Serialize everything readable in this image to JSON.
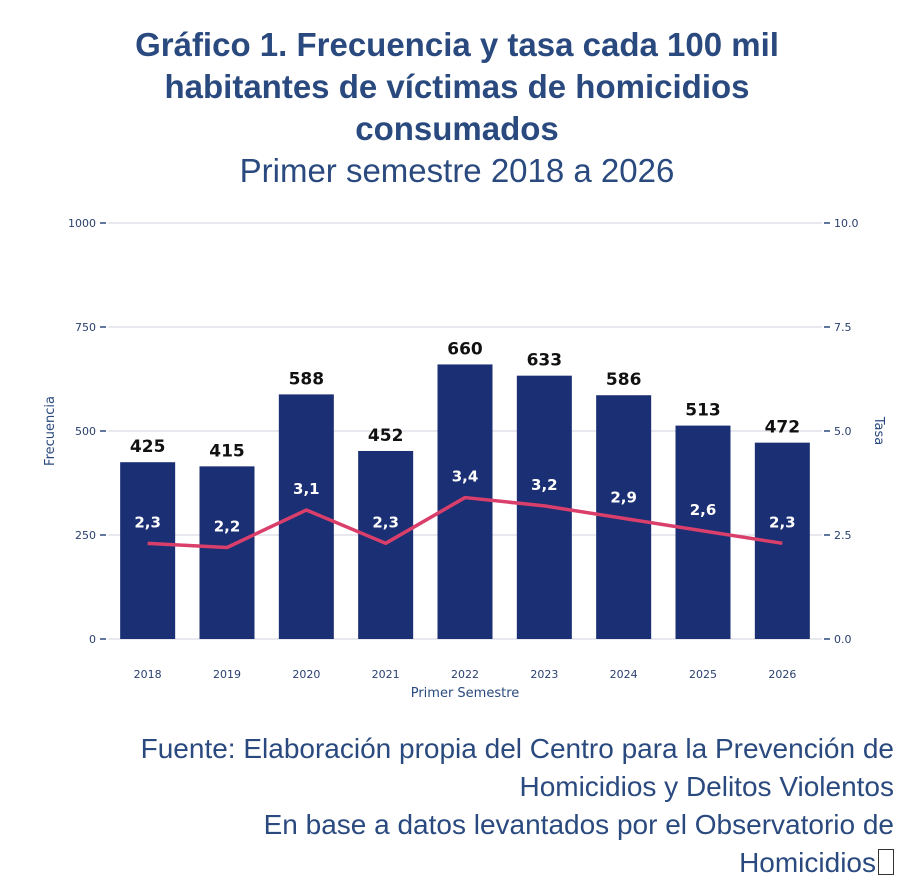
{
  "chart_data": {
    "type": "bar",
    "title": "Gráfico 1. Frecuencia y tasa cada 100 mil habitantes de víctimas de homicidios consumados",
    "subtitle": "Primer semestre 2018 a 2026",
    "xlabel": "Primer Semestre",
    "ylabel": "Frecuencia",
    "y2label": "Tasa",
    "ylim": [
      0,
      1000
    ],
    "y2lim": [
      0,
      10
    ],
    "yticks": [
      0,
      250,
      500,
      750,
      1000
    ],
    "yticklabels": [
      "0",
      "250",
      "500",
      "750",
      "1000"
    ],
    "y2ticks": [
      0,
      2.5,
      5,
      7.5,
      10
    ],
    "y2ticklabels": [
      "0.0",
      "2.5",
      "5.0",
      "7.5",
      "10.0"
    ],
    "grid": true,
    "categories": [
      "2018",
      "2019",
      "2020",
      "2021",
      "2022",
      "2023",
      "2024",
      "2025",
      "2026"
    ],
    "series": [
      {
        "type": "bar",
        "axis": "left",
        "values": [
          425,
          415,
          588,
          452,
          660,
          633,
          586,
          513,
          472
        ],
        "labels": [
          "425",
          "415",
          "588",
          "452",
          "660",
          "633",
          "586",
          "513",
          "472"
        ],
        "color": "#1b2f74"
      },
      {
        "type": "line",
        "axis": "right",
        "values": [
          2.3,
          2.2,
          3.1,
          2.3,
          3.4,
          3.2,
          2.9,
          2.6,
          2.3
        ],
        "labels": [
          "2,3",
          "2,2",
          "3,1",
          "2,3",
          "3,4",
          "3,2",
          "2,9",
          "2,6",
          "2,3"
        ],
        "color": "#d93f6a"
      }
    ]
  },
  "source": {
    "line1": "Fuente: Elaboración propia del Centro para la Prevención de",
    "line2": "Homicidios y Delitos Violentos",
    "line3": "En base a datos levantados por el Observatorio de",
    "line4": "Homicidios"
  }
}
